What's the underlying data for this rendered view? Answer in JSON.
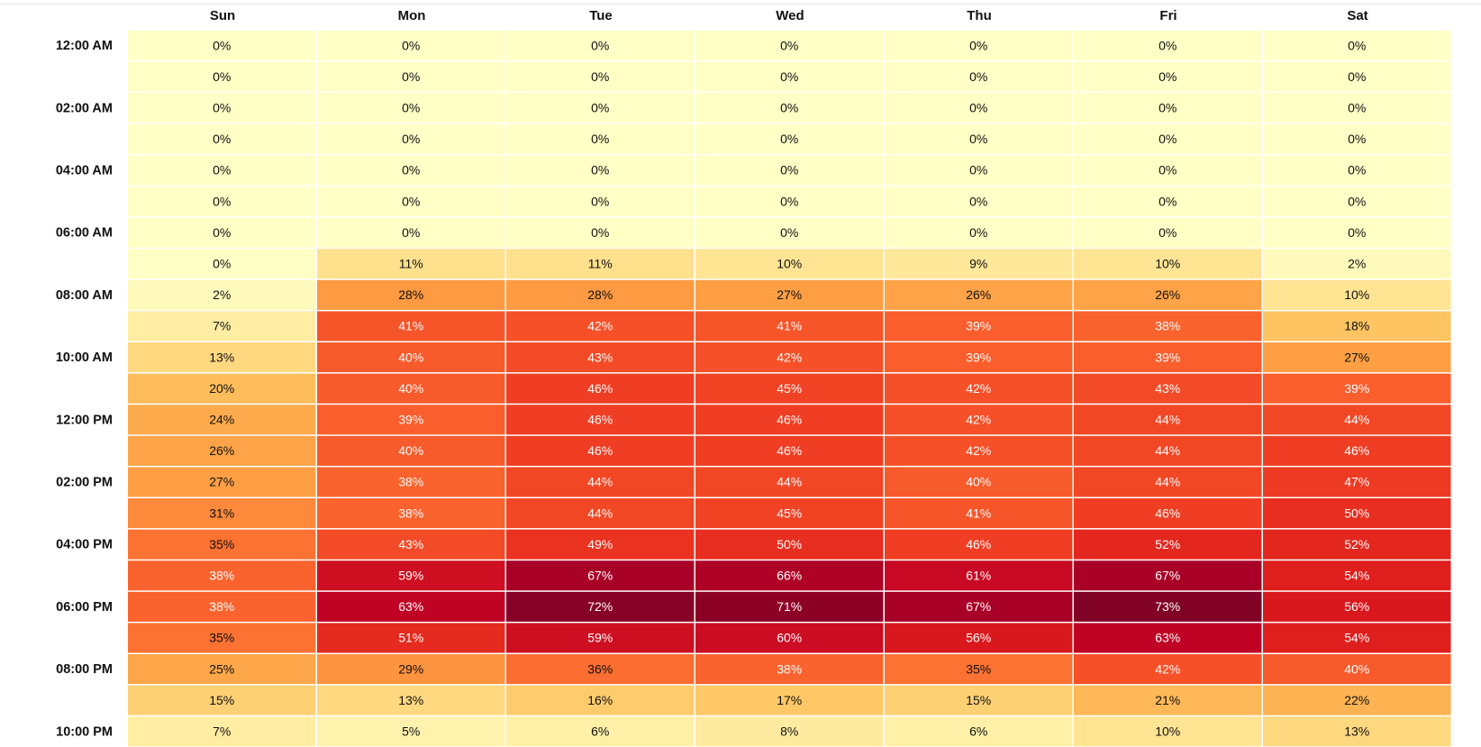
{
  "chart_data": {
    "type": "heatmap",
    "title": "",
    "x_categories": [
      "Sun",
      "Mon",
      "Tue",
      "Wed",
      "Thu",
      "Fri",
      "Sat"
    ],
    "y_categories": [
      "12:00 AM",
      "",
      "02:00 AM",
      "",
      "04:00 AM",
      "",
      "06:00 AM",
      "",
      "08:00 AM",
      "",
      "10:00 AM",
      "",
      "12:00 PM",
      "",
      "02:00 PM",
      "",
      "04:00 PM",
      "",
      "06:00 PM",
      "",
      "08:00 PM",
      "",
      "10:00 PM"
    ],
    "value_unit": "%",
    "value_range": [
      0,
      73
    ],
    "values": [
      [
        0,
        0,
        0,
        0,
        0,
        0,
        0
      ],
      [
        0,
        0,
        0,
        0,
        0,
        0,
        0
      ],
      [
        0,
        0,
        0,
        0,
        0,
        0,
        0
      ],
      [
        0,
        0,
        0,
        0,
        0,
        0,
        0
      ],
      [
        0,
        0,
        0,
        0,
        0,
        0,
        0
      ],
      [
        0,
        0,
        0,
        0,
        0,
        0,
        0
      ],
      [
        0,
        0,
        0,
        0,
        0,
        0,
        0
      ],
      [
        0,
        11,
        11,
        10,
        9,
        10,
        2
      ],
      [
        2,
        28,
        28,
        27,
        26,
        26,
        10
      ],
      [
        7,
        41,
        42,
        41,
        39,
        38,
        18
      ],
      [
        13,
        40,
        43,
        42,
        39,
        39,
        27
      ],
      [
        20,
        40,
        46,
        45,
        42,
        43,
        39
      ],
      [
        24,
        39,
        46,
        46,
        42,
        44,
        44
      ],
      [
        26,
        40,
        46,
        46,
        42,
        44,
        46
      ],
      [
        27,
        38,
        44,
        44,
        40,
        44,
        47
      ],
      [
        31,
        38,
        44,
        45,
        41,
        46,
        50
      ],
      [
        35,
        43,
        49,
        50,
        46,
        52,
        52
      ],
      [
        38,
        59,
        67,
        66,
        61,
        67,
        54
      ],
      [
        38,
        63,
        72,
        71,
        67,
        73,
        56
      ],
      [
        35,
        51,
        59,
        60,
        56,
        63,
        54
      ],
      [
        25,
        29,
        36,
        38,
        35,
        42,
        40
      ],
      [
        15,
        13,
        16,
        17,
        15,
        21,
        22
      ],
      [
        7,
        5,
        6,
        8,
        6,
        10,
        13
      ]
    ],
    "color_scale": [
      "#ffffc6",
      "#ffe899",
      "#fec35f",
      "#fe9d43",
      "#fc6a30",
      "#f03f23",
      "#dd1c1c",
      "#bd0026",
      "#800026"
    ],
    "light_text_color": "#ffffff",
    "dark_text_color": "#111111"
  }
}
